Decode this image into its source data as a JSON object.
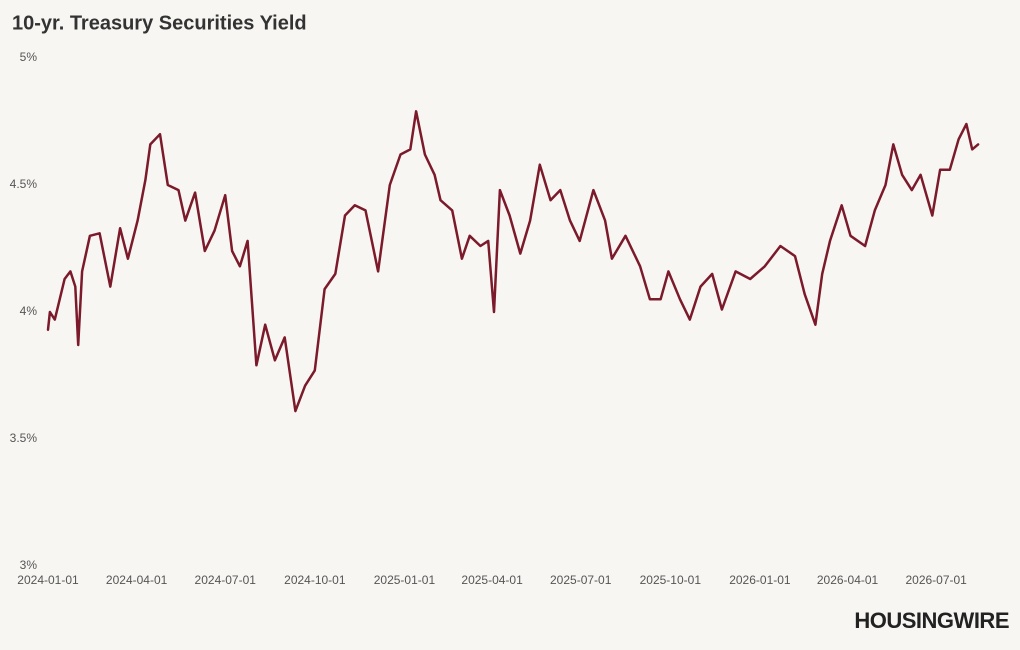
{
  "chart_data": {
    "type": "line",
    "title": "10-yr. Treasury Securities Yield",
    "logo": "HOUSINGWIRE",
    "color": "#7b1a2a",
    "grid": false,
    "xlim": [
      "2024-01-01",
      "2026-08-15"
    ],
    "xticks": [
      "2024-01-01",
      "2024-04-01",
      "2024-07-01",
      "2024-10-01",
      "2025-01-01",
      "2025-04-01",
      "2025-07-01",
      "2025-10-01",
      "2026-01-01",
      "2026-04-01",
      "2026-07-01"
    ],
    "ylim": [
      3,
      5
    ],
    "yticks": [
      {
        "value": 3,
        "label": "3%"
      },
      {
        "value": 3.5,
        "label": "3.5%"
      },
      {
        "value": 4,
        "label": "4%"
      },
      {
        "value": 4.5,
        "label": "4.5%"
      },
      {
        "value": 5,
        "label": "5%"
      }
    ],
    "x": [
      "2024-01-01",
      "2024-01-03",
      "2024-01-08",
      "2024-01-13",
      "2024-01-18",
      "2024-01-24",
      "2024-01-29",
      "2024-02-01",
      "2024-02-05",
      "2024-02-13",
      "2024-02-23",
      "2024-03-05",
      "2024-03-15",
      "2024-03-23",
      "2024-04-02",
      "2024-04-10",
      "2024-04-15",
      "2024-04-25",
      "2024-05-03",
      "2024-05-14",
      "2024-05-21",
      "2024-05-31",
      "2024-06-10",
      "2024-06-20",
      "2024-07-01",
      "2024-07-08",
      "2024-07-16",
      "2024-07-24",
      "2024-08-02",
      "2024-08-11",
      "2024-08-21",
      "2024-08-31",
      "2024-09-11",
      "2024-09-21",
      "2024-10-01",
      "2024-10-11",
      "2024-10-22",
      "2024-11-01",
      "2024-11-11",
      "2024-11-22",
      "2024-12-05",
      "2024-12-17",
      "2024-12-28",
      "2025-01-07",
      "2025-01-13",
      "2025-01-22",
      "2025-02-01",
      "2025-02-07",
      "2025-02-19",
      "2025-03-01",
      "2025-03-09",
      "2025-03-20",
      "2025-03-28",
      "2025-04-03",
      "2025-04-09",
      "2025-04-19",
      "2025-04-30",
      "2025-05-10",
      "2025-05-20",
      "2025-05-31",
      "2025-06-10",
      "2025-06-20",
      "2025-06-30",
      "2025-07-14",
      "2025-07-26",
      "2025-08-02",
      "2025-08-16",
      "2025-08-31",
      "2025-09-10",
      "2025-09-21",
      "2025-09-29",
      "2025-10-11",
      "2025-10-21",
      "2025-11-01",
      "2025-11-13",
      "2025-11-23",
      "2025-12-07",
      "2025-12-22",
      "2026-01-06",
      "2026-01-22",
      "2026-02-06",
      "2026-02-16",
      "2026-02-27",
      "2026-03-06",
      "2026-03-14",
      "2026-03-26",
      "2026-04-04",
      "2026-04-19",
      "2026-04-29",
      "2026-05-10",
      "2026-05-18",
      "2026-05-27",
      "2026-06-06",
      "2026-06-15",
      "2026-06-27",
      "2026-07-05",
      "2026-07-15",
      "2026-07-24",
      "2026-08-01",
      "2026-08-07",
      "2026-08-13"
    ],
    "values": [
      3.93,
      4.0,
      3.97,
      4.05,
      4.13,
      4.16,
      4.1,
      3.87,
      4.16,
      4.3,
      4.31,
      4.1,
      4.33,
      4.21,
      4.36,
      4.52,
      4.66,
      4.7,
      4.5,
      4.48,
      4.36,
      4.47,
      4.24,
      4.32,
      4.46,
      4.24,
      4.18,
      4.28,
      3.79,
      3.95,
      3.81,
      3.9,
      3.61,
      3.71,
      3.77,
      4.09,
      4.15,
      4.38,
      4.42,
      4.4,
      4.16,
      4.5,
      4.62,
      4.64,
      4.79,
      4.62,
      4.54,
      4.44,
      4.4,
      4.21,
      4.3,
      4.26,
      4.28,
      4.0,
      4.48,
      4.38,
      4.23,
      4.36,
      4.58,
      4.44,
      4.48,
      4.36,
      4.28,
      4.48,
      4.36,
      4.21,
      4.3,
      4.18,
      4.05,
      4.05,
      4.16,
      4.05,
      3.97,
      4.1,
      4.15,
      4.01,
      4.16,
      4.13,
      4.18,
      4.26,
      4.22,
      4.07,
      3.95,
      4.15,
      4.28,
      4.42,
      4.3,
      4.26,
      4.4,
      4.5,
      4.66,
      4.54,
      4.48,
      4.54,
      4.38,
      4.56,
      4.56,
      4.68,
      4.74,
      4.64,
      4.66
    ]
  }
}
